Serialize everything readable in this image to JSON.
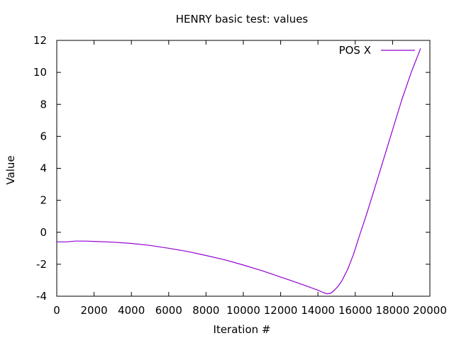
{
  "chart_data": {
    "type": "line",
    "title": "HENRY basic test: values",
    "xlabel": "Iteration #",
    "ylabel": "Value",
    "xlim": [
      0,
      20000
    ],
    "ylim": [
      -4,
      12
    ],
    "xticks": [
      0,
      2000,
      4000,
      6000,
      8000,
      10000,
      12000,
      14000,
      16000,
      18000,
      20000
    ],
    "yticks": [
      -4,
      -2,
      0,
      2,
      4,
      6,
      8,
      10,
      12
    ],
    "grid": false,
    "legend_position": "top-right",
    "series": [
      {
        "name": "POS X",
        "color": "#9400d3",
        "x": [
          0,
          500,
          1000,
          1500,
          2000,
          3000,
          4000,
          5000,
          6000,
          7000,
          8000,
          9000,
          10000,
          11000,
          12000,
          13000,
          14000,
          14300,
          14500,
          14700,
          14900,
          15100,
          15300,
          15600,
          15900,
          16200,
          16600,
          17000,
          17500,
          18000,
          18500,
          19000,
          19500
        ],
        "values": [
          -0.6,
          -0.6,
          -0.55,
          -0.55,
          -0.57,
          -0.62,
          -0.7,
          -0.82,
          -1.0,
          -1.2,
          -1.45,
          -1.72,
          -2.05,
          -2.4,
          -2.8,
          -3.2,
          -3.62,
          -3.78,
          -3.85,
          -3.8,
          -3.6,
          -3.35,
          -3.0,
          -2.3,
          -1.4,
          -0.3,
          1.1,
          2.6,
          4.5,
          6.4,
          8.3,
          10.0,
          11.5
        ]
      }
    ]
  }
}
